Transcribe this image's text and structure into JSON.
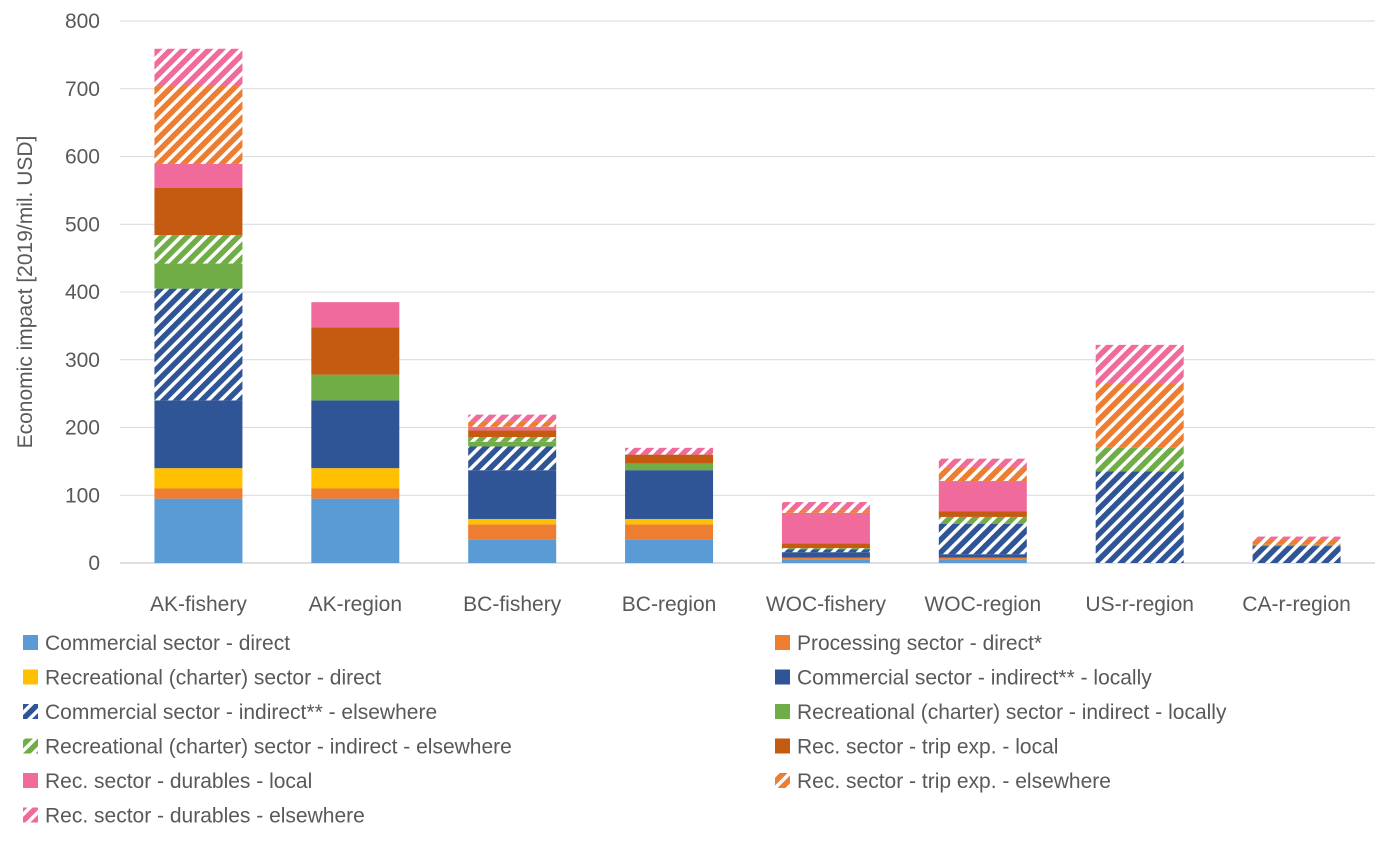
{
  "chart_data": {
    "type": "bar",
    "stacked": true,
    "ylabel": "Economic impact [2019/mil. USD]",
    "xlabel": "",
    "ylim": [
      0,
      800
    ],
    "yticks": [
      0,
      100,
      200,
      300,
      400,
      500,
      600,
      700,
      800
    ],
    "grid": "horizontal",
    "legend_position": "bottom",
    "categories": [
      "AK-fishery",
      "AK-region",
      "BC-fishery",
      "BC-region",
      "WOC-fishery",
      "WOC-region",
      "US-r-region",
      "CA-r-region"
    ],
    "series": [
      {
        "name": "Commercial sector - direct",
        "color": "#5B9BD5",
        "pattern": "solid",
        "values": [
          95,
          95,
          35,
          35,
          5,
          5,
          0,
          0
        ]
      },
      {
        "name": "Processing sector - direct*",
        "color": "#ED7D31",
        "pattern": "solid",
        "values": [
          15,
          15,
          22,
          22,
          3,
          3,
          0,
          0
        ]
      },
      {
        "name": "Recreational (charter) sector - direct",
        "color": "#FFC000",
        "pattern": "solid",
        "values": [
          30,
          30,
          8,
          8,
          0,
          0,
          0,
          0
        ]
      },
      {
        "name": "Commercial sector - indirect** - locally",
        "color": "#2F5597",
        "pattern": "solid",
        "values": [
          100,
          100,
          72,
          72,
          8,
          5,
          0,
          0
        ]
      },
      {
        "name": "Commercial sector - indirect** - elsewhere",
        "color": "#2F5597",
        "pattern": "hatch",
        "values": [
          165,
          0,
          35,
          0,
          4,
          45,
          135,
          25
        ]
      },
      {
        "name": "Recreational (charter) sector - indirect - locally",
        "color": "#70AD47",
        "pattern": "solid",
        "values": [
          37,
          38,
          7,
          10,
          0,
          0,
          0,
          0
        ]
      },
      {
        "name": "Recreational (charter) sector - indirect - elsewhere",
        "color": "#70AD47",
        "pattern": "hatch",
        "values": [
          42,
          0,
          7,
          0,
          2,
          10,
          35,
          2
        ]
      },
      {
        "name": "Rec. sector - trip exp. - local",
        "color": "#C55A11",
        "pattern": "solid",
        "values": [
          70,
          70,
          10,
          13,
          7,
          8,
          0,
          0
        ]
      },
      {
        "name": "Rec. sector - durables - local",
        "color": "#F06A9B",
        "pattern": "solid",
        "values": [
          35,
          37,
          5,
          0,
          45,
          45,
          0,
          0
        ]
      },
      {
        "name": "Rec. sector - trip exp. - elsewhere",
        "color": "#ED7D31",
        "pattern": "hatch",
        "values": [
          115,
          0,
          8,
          0,
          4,
          20,
          95,
          7
        ]
      },
      {
        "name": "Rec. sector - durables - elsewhere",
        "color": "#F06A9B",
        "pattern": "hatch",
        "values": [
          55,
          0,
          10,
          10,
          12,
          13,
          57,
          5
        ]
      }
    ]
  }
}
